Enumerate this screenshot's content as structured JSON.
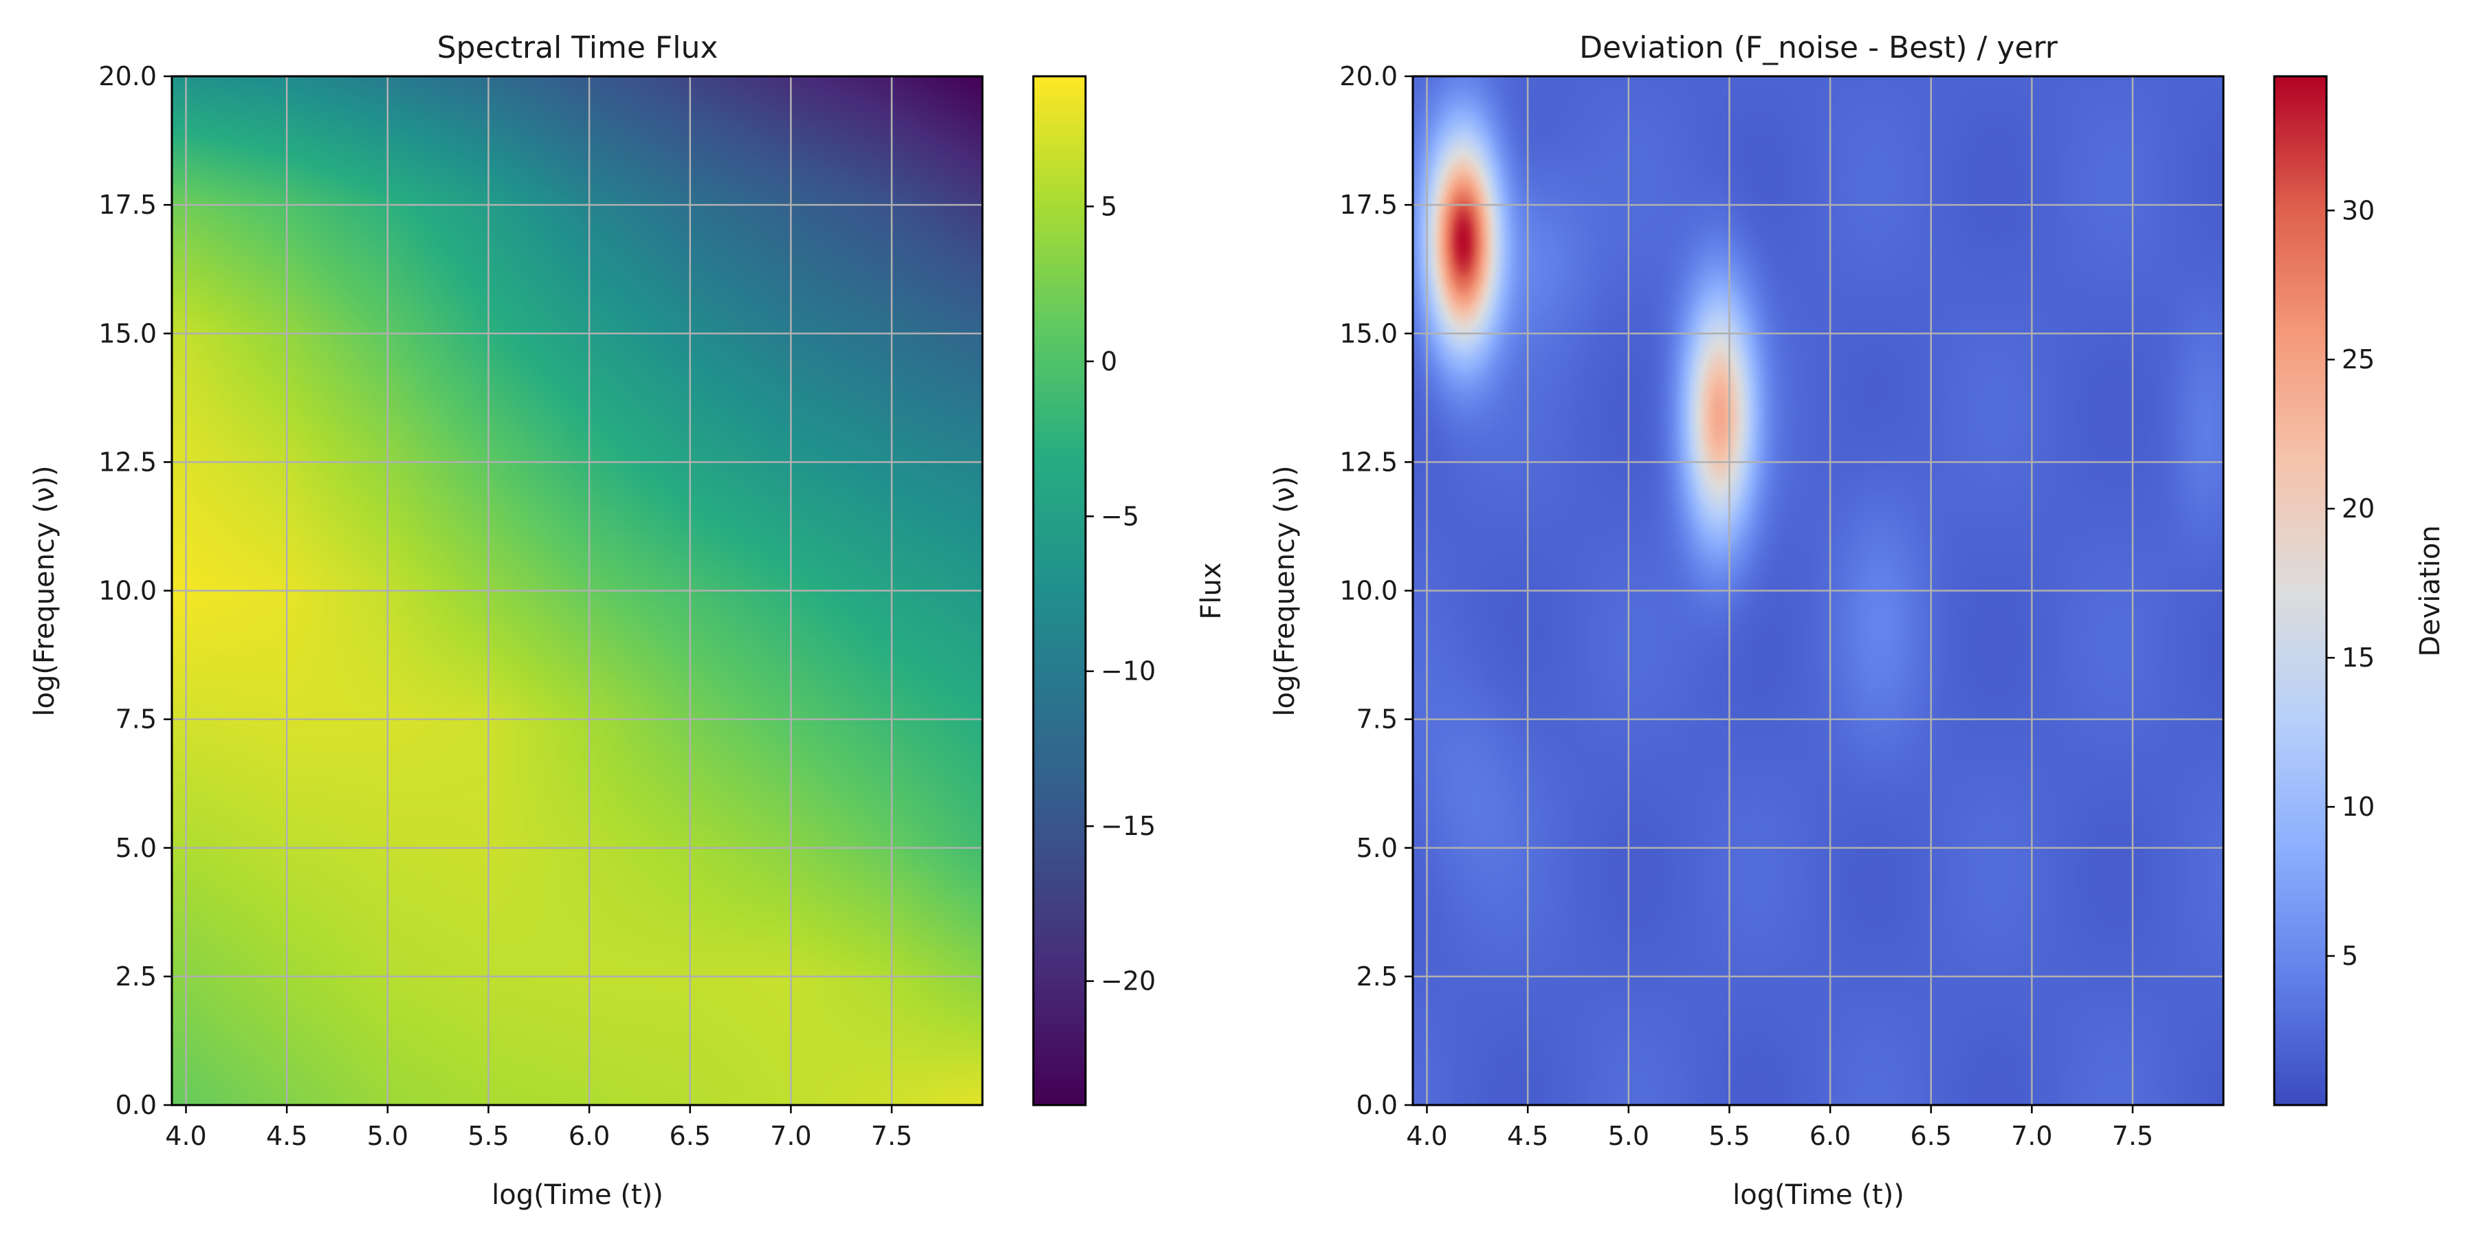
{
  "figure": {
    "background": "#ffffff"
  },
  "chart_data": [
    {
      "type": "heatmap",
      "title": "Spectral Time Flux",
      "xlabel": "log(Time (t))",
      "ylabel": "log(Frequency (ν))",
      "xlim": [
        3.93,
        7.95
      ],
      "ylim": [
        0.0,
        20.0
      ],
      "xticks": [
        4.0,
        4.5,
        5.0,
        5.5,
        6.0,
        6.5,
        7.0,
        7.5
      ],
      "xtick_labels": [
        "4.0",
        "4.5",
        "5.0",
        "5.5",
        "6.0",
        "6.5",
        "7.0",
        "7.5"
      ],
      "yticks": [
        0.0,
        2.5,
        5.0,
        7.5,
        10.0,
        12.5,
        15.0,
        17.5,
        20.0
      ],
      "ytick_labels": [
        "0.0",
        "2.5",
        "5.0",
        "7.5",
        "10.0",
        "12.5",
        "15.0",
        "17.5",
        "20.0"
      ],
      "grid": true,
      "colormap": "viridis",
      "colorbar": {
        "label": "Flux",
        "range": [
          -24.0,
          9.2
        ],
        "ticks": [
          5,
          0,
          -5,
          -10,
          -15,
          -20
        ],
        "tick_labels": [
          "5",
          "0",
          "−5",
          "−10",
          "−15",
          "−20"
        ]
      },
      "x": [
        4.0,
        4.5,
        5.0,
        5.5,
        6.0,
        6.5,
        7.0,
        7.5,
        7.95
      ],
      "y": [
        0.0,
        2.5,
        5.0,
        7.5,
        10.0,
        12.5,
        15.0,
        17.5,
        20.0
      ],
      "z": [
        [
          1.5,
          3.0,
          4.5,
          5.2,
          5.5,
          5.8,
          6.3,
          7.0,
          8.0
        ],
        [
          3.5,
          4.8,
          5.8,
          6.2,
          6.4,
          6.4,
          6.6,
          5.5,
          3.5
        ],
        [
          5.5,
          6.2,
          6.6,
          6.8,
          6.0,
          5.0,
          3.5,
          1.5,
          -1.0
        ],
        [
          7.2,
          7.5,
          7.4,
          7.0,
          5.0,
          2.5,
          0.5,
          -1.5,
          -3.0
        ],
        [
          8.8,
          8.2,
          6.5,
          4.0,
          1.5,
          -0.5,
          -2.5,
          -4.5,
          -6.0
        ],
        [
          7.8,
          6.5,
          4.0,
          1.0,
          -2.0,
          -4.5,
          -6.5,
          -8.0,
          -9.0
        ],
        [
          6.5,
          4.0,
          1.0,
          -2.5,
          -5.5,
          -8.0,
          -10.0,
          -11.5,
          -13.0
        ],
        [
          2.0,
          0.0,
          -2.5,
          -5.5,
          -9.0,
          -11.5,
          -13.5,
          -15.5,
          -18.0
        ],
        [
          -7.0,
          -8.0,
          -10.0,
          -12.0,
          -14.5,
          -17.0,
          -19.5,
          -21.5,
          -24.0
        ]
      ]
    },
    {
      "type": "heatmap",
      "title": "Deviation (F_noise - Best) / yerr",
      "xlabel": "log(Time (t))",
      "ylabel": "log(Frequency (ν))",
      "xlim": [
        3.93,
        7.95
      ],
      "ylim": [
        0.0,
        20.0
      ],
      "xticks": [
        4.0,
        4.5,
        5.0,
        5.5,
        6.0,
        6.5,
        7.0,
        7.5
      ],
      "xtick_labels": [
        "4.0",
        "4.5",
        "5.0",
        "5.5",
        "6.0",
        "6.5",
        "7.0",
        "7.5"
      ],
      "yticks": [
        0.0,
        2.5,
        5.0,
        7.5,
        10.0,
        12.5,
        15.0,
        17.5,
        20.0
      ],
      "ytick_labels": [
        "0.0",
        "2.5",
        "5.0",
        "7.5",
        "10.0",
        "12.5",
        "15.0",
        "17.5",
        "20.0"
      ],
      "grid": true,
      "colormap": "coolwarm",
      "colorbar": {
        "label": "Deviation",
        "range": [
          0.0,
          34.5
        ],
        "ticks": [
          5,
          10,
          15,
          20,
          25,
          30
        ],
        "tick_labels": [
          "5",
          "10",
          "15",
          "20",
          "25",
          "30"
        ]
      },
      "background_level": 2.0,
      "peaks": [
        {
          "x": 4.18,
          "y": 16.8,
          "value": 34.0,
          "sx": 0.12,
          "sy": 1.4
        },
        {
          "x": 5.45,
          "y": 13.4,
          "value": 24.0,
          "sx": 0.12,
          "sy": 1.6
        },
        {
          "x": 4.55,
          "y": 16.5,
          "value": 4.5,
          "sx": 0.18,
          "sy": 1.2
        },
        {
          "x": 6.25,
          "y": 9.5,
          "value": 4.0,
          "sx": 0.15,
          "sy": 1.8
        },
        {
          "x": 4.2,
          "y": 6.2,
          "value": 3.5,
          "sx": 0.2,
          "sy": 1.5
        },
        {
          "x": 7.85,
          "y": 13.0,
          "value": 3.5,
          "sx": 0.1,
          "sy": 1.5
        }
      ]
    }
  ]
}
